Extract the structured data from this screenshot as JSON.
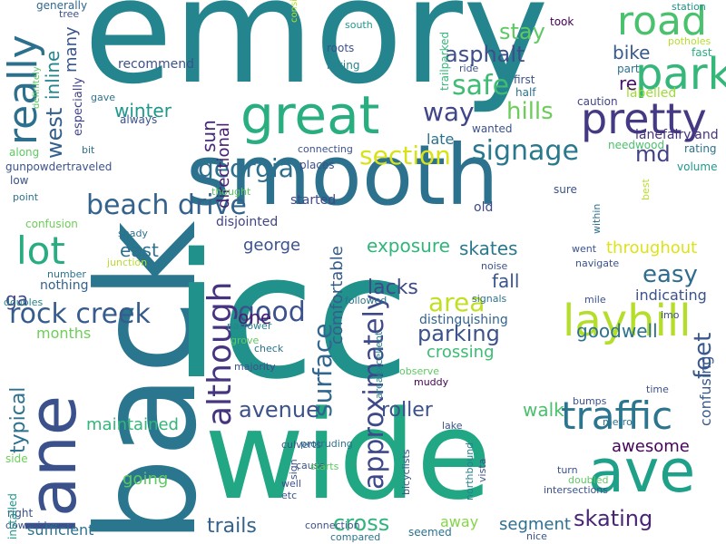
{
  "words": [
    {
      "t": "emory",
      "c": "#25858e"
    },
    {
      "t": "back",
      "c": "#2a768e"
    },
    {
      "t": "icc",
      "c": "#21918c"
    },
    {
      "t": "wide",
      "c": "#22a785"
    },
    {
      "t": "smooth",
      "c": "#2c728e"
    },
    {
      "t": "great",
      "c": "#29af7f"
    },
    {
      "t": "lane",
      "c": "#3b518b"
    },
    {
      "t": "ave",
      "c": "#1fa088"
    },
    {
      "t": "park",
      "c": "#35b779"
    },
    {
      "t": "road",
      "c": "#4ac16d"
    },
    {
      "t": "pretty",
      "c": "#443a83"
    },
    {
      "t": "really",
      "c": "#2d708e"
    },
    {
      "t": "layhill",
      "c": "#b5de2b"
    },
    {
      "t": "traffic",
      "c": "#2b758e"
    },
    {
      "t": "beach drive",
      "c": "#33638d"
    },
    {
      "t": "rock creek",
      "c": "#365c8d"
    },
    {
      "t": "lot",
      "c": "#27ad81"
    },
    {
      "t": "although",
      "c": "#463480"
    },
    {
      "t": "approximately",
      "c": "#3e4989"
    },
    {
      "t": "surface",
      "c": "#31668e"
    },
    {
      "t": "georgia",
      "c": "#2e6f8e"
    },
    {
      "t": "signage",
      "c": "#2a788e"
    },
    {
      "t": "section",
      "c": "#d8e219"
    },
    {
      "t": "good",
      "c": "#3b528b"
    },
    {
      "t": "way",
      "c": "#404688"
    },
    {
      "t": "safe",
      "c": "#3fbc73"
    },
    {
      "t": "hills",
      "c": "#6ccd5a"
    },
    {
      "t": "md",
      "c": "#424186"
    },
    {
      "t": "cross",
      "c": "#2fb47c"
    },
    {
      "t": "trails",
      "c": "#33638d"
    },
    {
      "t": "skating",
      "c": "#482576"
    },
    {
      "t": "parking",
      "c": "#3b528b"
    },
    {
      "t": "area",
      "c": "#c2df23"
    },
    {
      "t": "feet",
      "c": "#38598c"
    },
    {
      "t": "easy",
      "c": "#2f6c8e"
    },
    {
      "t": "avenue",
      "c": "#3b528b"
    },
    {
      "t": "typical",
      "c": "#2c728e"
    },
    {
      "t": "lacks",
      "c": "#3e4a89"
    },
    {
      "t": "asphalt",
      "c": "#3d4e8a"
    },
    {
      "t": "stay",
      "c": "#5ec962"
    },
    {
      "t": "bike",
      "c": "#375b8d"
    },
    {
      "t": "re",
      "c": "#471164"
    },
    {
      "t": "west",
      "c": "#34608d"
    },
    {
      "t": "inline",
      "c": "#25858e"
    },
    {
      "t": "many",
      "c": "#39558c"
    },
    {
      "t": "winter",
      "c": "#1f988b"
    },
    {
      "t": "sun",
      "c": "#482878"
    },
    {
      "t": "directional",
      "c": "#482071"
    },
    {
      "t": "one",
      "c": "#482173"
    },
    {
      "t": "ga",
      "c": "#414487"
    },
    {
      "t": "east",
      "c": "#2c718e"
    },
    {
      "t": "george",
      "c": "#3b528b"
    },
    {
      "t": "disjointed",
      "c": "#414487"
    },
    {
      "t": "exposure",
      "c": "#31b57b"
    },
    {
      "t": "skates",
      "c": "#2a788e"
    },
    {
      "t": "fall",
      "c": "#39568c"
    },
    {
      "t": "goodwell",
      "c": "#2c728e"
    },
    {
      "t": "crossing",
      "c": "#3dbc74"
    },
    {
      "t": "comfortable",
      "c": "#365d8d"
    },
    {
      "t": "walk",
      "c": "#4ac16d"
    },
    {
      "t": "roller",
      "c": "#3b528b"
    },
    {
      "t": "throughout",
      "c": "#dde318"
    },
    {
      "t": "indicating",
      "c": "#3b528b"
    },
    {
      "t": "maintained",
      "c": "#34b679"
    },
    {
      "t": "months",
      "c": "#6ece58"
    },
    {
      "t": "going",
      "c": "#5ec962"
    },
    {
      "t": "awesome",
      "c": "#450559"
    },
    {
      "t": "segment",
      "c": "#2e6e8e"
    },
    {
      "t": "confusing",
      "c": "#38598c"
    },
    {
      "t": "sufficient",
      "c": "#2c728e"
    },
    {
      "t": "away",
      "c": "#86d549"
    },
    {
      "t": "nothing",
      "c": "#33638d"
    },
    {
      "t": "distinguishing",
      "c": "#32648e"
    },
    {
      "t": "late",
      "c": "#2c728e"
    },
    {
      "t": "started",
      "c": "#3e4989"
    },
    {
      "t": "old",
      "c": "#3e4989"
    },
    {
      "t": "trailparked",
      "c": "#35b779"
    },
    {
      "t": "took",
      "c": "#440154"
    },
    {
      "t": "station",
      "c": "#1f948c"
    },
    {
      "t": "fast",
      "c": "#27ad81"
    },
    {
      "t": "potholes",
      "c": "#b8de29"
    },
    {
      "t": "part",
      "c": "#2c728e"
    },
    {
      "t": "labelled",
      "c": "#a0da39"
    },
    {
      "t": "caution",
      "c": "#414487"
    },
    {
      "t": "lanefairyland",
      "c": "#46337e"
    },
    {
      "t": "needwood",
      "c": "#4ac16d"
    },
    {
      "t": "rating",
      "c": "#2c728e"
    },
    {
      "t": "volume",
      "c": "#1f988b"
    },
    {
      "t": "ride",
      "c": "#3b528b"
    },
    {
      "t": "first",
      "c": "#3b528b"
    },
    {
      "t": "half",
      "c": "#2c728e"
    },
    {
      "t": "wanted",
      "c": "#3b528b"
    },
    {
      "t": "south",
      "c": "#1f988b"
    },
    {
      "t": "roots",
      "c": "#3b528b"
    },
    {
      "t": "biking",
      "c": "#26828e"
    },
    {
      "t": "considerably",
      "c": "#b8de29"
    },
    {
      "t": "recommend",
      "c": "#3b528b"
    },
    {
      "t": "especially",
      "c": "#414487"
    },
    {
      "t": "gave",
      "c": "#2c728e"
    },
    {
      "t": "always",
      "c": "#3b528b"
    },
    {
      "t": "bit",
      "c": "#2c728e"
    },
    {
      "t": "definitely",
      "c": "#5ec962"
    },
    {
      "t": "generally",
      "c": "#31688e"
    },
    {
      "t": "tree",
      "c": "#3b528b"
    },
    {
      "t": "along",
      "c": "#5ec962"
    },
    {
      "t": "gunpowdertraveled",
      "c": "#3b528b"
    },
    {
      "t": "low",
      "c": "#3b528b"
    },
    {
      "t": "point",
      "c": "#2c728e"
    },
    {
      "t": "confusion",
      "c": "#6ece58"
    },
    {
      "t": "number",
      "c": "#2c728e"
    },
    {
      "t": "doubles",
      "c": "#26828e"
    },
    {
      "t": "side",
      "c": "#6ece58"
    },
    {
      "t": "right",
      "c": "#3b528b"
    },
    {
      "t": "downside",
      "c": "#3b528b"
    },
    {
      "t": "installed",
      "c": "#1f988b"
    },
    {
      "t": "connecting",
      "c": "#3b528b"
    },
    {
      "t": "places",
      "c": "#3b528b"
    },
    {
      "t": "thought",
      "c": "#5ec962"
    },
    {
      "t": "shady",
      "c": "#2c728e"
    },
    {
      "t": "junction",
      "c": "#b8de29"
    },
    {
      "t": "narrower",
      "c": "#26828e"
    },
    {
      "t": "grove",
      "c": "#5ec962"
    },
    {
      "t": "majority",
      "c": "#3b528b"
    },
    {
      "t": "check",
      "c": "#2c728e"
    },
    {
      "t": "followed",
      "c": "#2c728e"
    },
    {
      "t": "noise",
      "c": "#3b528b"
    },
    {
      "t": "signals",
      "c": "#2c728e"
    },
    {
      "t": "areaexcellent",
      "c": "#26828e"
    },
    {
      "t": "observe",
      "c": "#5ec962"
    },
    {
      "t": "muddy",
      "c": "#440154"
    },
    {
      "t": "lake",
      "c": "#3b528b"
    },
    {
      "t": "culverts",
      "c": "#3b528b"
    },
    {
      "t": "protruding",
      "c": "#2c728e"
    },
    {
      "t": "vista",
      "c": "#3b528b"
    },
    {
      "t": "cause",
      "c": "#3b528b"
    },
    {
      "t": "starts",
      "c": "#5ec962"
    },
    {
      "t": "well",
      "c": "#3b528b"
    },
    {
      "t": "etc",
      "c": "#3b528b"
    },
    {
      "t": "sign",
      "c": "#3b528b"
    },
    {
      "t": "connection",
      "c": "#3b528b"
    },
    {
      "t": "compared",
      "c": "#2c728e"
    },
    {
      "t": "bicyclists",
      "c": "#3b528b"
    },
    {
      "t": "seemed",
      "c": "#2c728e"
    },
    {
      "t": "northbound",
      "c": "#26828e"
    },
    {
      "t": "nice",
      "c": "#3b528b"
    },
    {
      "t": "intersections",
      "c": "#3b528b"
    },
    {
      "t": "turn",
      "c": "#3b528b"
    },
    {
      "t": "doubled",
      "c": "#5ec962"
    },
    {
      "t": "bumps",
      "c": "#3b528b"
    },
    {
      "t": "metro",
      "c": "#2c728e"
    },
    {
      "t": "time",
      "c": "#3b528b"
    },
    {
      "t": "imo",
      "c": "#3b528b"
    },
    {
      "t": "mile",
      "c": "#3b528b"
    },
    {
      "t": "went",
      "c": "#3b528b"
    },
    {
      "t": "navigate",
      "c": "#3b528b"
    },
    {
      "t": "within",
      "c": "#2c728e"
    },
    {
      "t": "best",
      "c": "#b8de29"
    },
    {
      "t": "sure",
      "c": "#3b528b"
    }
  ]
}
